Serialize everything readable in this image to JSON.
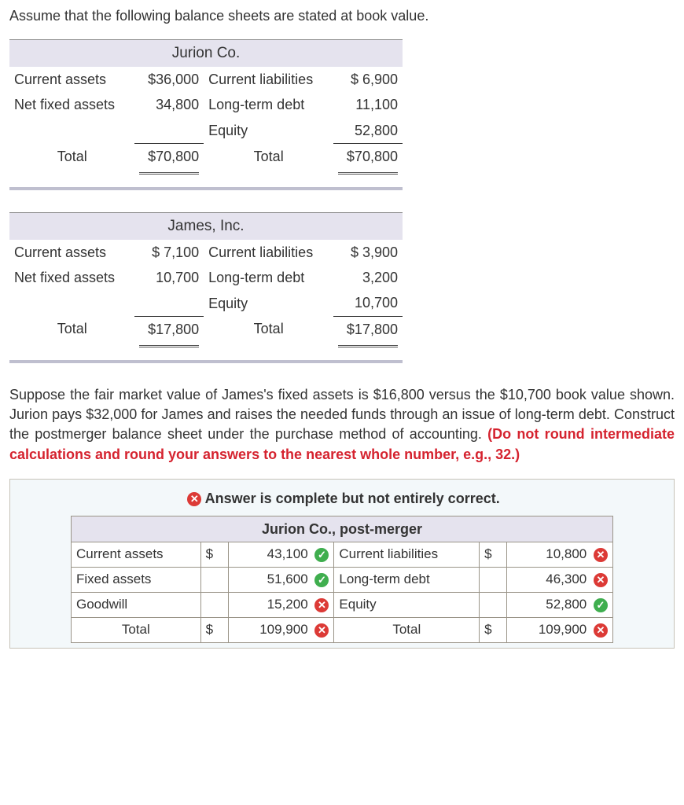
{
  "intro": "Assume that the following balance sheets are stated at book value.",
  "jurion": {
    "title": "Jurion Co.",
    "rows": [
      {
        "left_label": "Current assets",
        "left_value": "$36,000",
        "right_label": "Current liabilities",
        "right_value": "$ 6,900"
      },
      {
        "left_label": "Net fixed assets",
        "left_value": "34,800",
        "right_label": "Long-term debt",
        "right_value": "11,100"
      },
      {
        "left_label": "",
        "left_value": "",
        "right_label": "Equity",
        "right_value": "52,800"
      }
    ],
    "total_label": "Total",
    "total_left": "$70,800",
    "total_right": "$70,800"
  },
  "james": {
    "title": "James, Inc.",
    "rows": [
      {
        "left_label": "Current assets",
        "left_value": "$ 7,100",
        "right_label": "Current liabilities",
        "right_value": "$ 3,900"
      },
      {
        "left_label": "Net fixed assets",
        "left_value": "10,700",
        "right_label": "Long-term debt",
        "right_value": "3,200"
      },
      {
        "left_label": "",
        "left_value": "",
        "right_label": "Equity",
        "right_value": "10,700"
      }
    ],
    "total_label": "Total",
    "total_left": "$17,800",
    "total_right": "$17,800"
  },
  "question_part1": "Suppose the fair market value of James's fixed assets is $16,800 versus the $10,700 book value shown. Jurion pays $32,000 for James and raises the needed funds through an issue of long-term debt. Construct the postmerger balance sheet under the purchase method of accounting. ",
  "question_hint": "(Do not round intermediate calculations and round your answers to the nearest whole number, e.g., 32.)",
  "feedback": "Answer is complete but not entirely correct.",
  "answer": {
    "title": "Jurion Co., post-merger",
    "rows": [
      {
        "l": "Current assets",
        "lc": "$",
        "lv": "43,100",
        "ls": "ok",
        "r": "Current liabilities",
        "rc": "$",
        "rv": "10,800",
        "rs": "bad"
      },
      {
        "l": "Fixed assets",
        "lc": "",
        "lv": "51,600",
        "ls": "ok",
        "r": "Long-term debt",
        "rc": "",
        "rv": "46,300",
        "rs": "bad"
      },
      {
        "l": "Goodwill",
        "lc": "",
        "lv": "15,200",
        "ls": "bad",
        "r": "Equity",
        "rc": "",
        "rv": "52,800",
        "rs": "ok"
      },
      {
        "l": "Total",
        "lc": "$",
        "lv": "109,900",
        "ls": "bad",
        "r": "Total",
        "rc": "$",
        "rv": "109,900",
        "rs": "bad"
      }
    ]
  },
  "glyphs": {
    "ok": "✓",
    "bad": "✕"
  },
  "colors": {
    "header_bg": "#e5e3ee",
    "ok": "#3fae4e",
    "bad": "#dc3a36",
    "hint": "#d5232f",
    "answer_box_bg": "#f3f8fa"
  }
}
